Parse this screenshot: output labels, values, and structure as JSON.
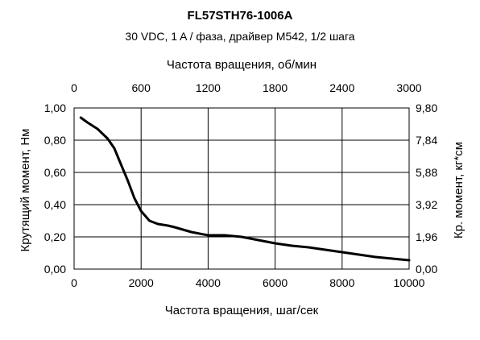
{
  "chart_data": {
    "type": "line",
    "title": "FL57STH76-1006A",
    "subtitle": "30 VDC, 1 A / фаза, драйвер M542, 1/2 шага",
    "xlabel": "Частота вращения, шаг/сек",
    "x2label": "Частота вращения, об/мин",
    "ylabel": "Крутящий момент, Нм",
    "y2label": "Кр. момент, кг*см",
    "xlim": [
      0,
      10000
    ],
    "ylim": [
      0,
      1
    ],
    "x2lim": [
      0,
      3000
    ],
    "y2lim": [
      0,
      9.8
    ],
    "xticks": [
      "0",
      "2000",
      "4000",
      "6000",
      "8000",
      "10000"
    ],
    "x2ticks": [
      "0",
      "600",
      "1200",
      "1800",
      "2400",
      "3000"
    ],
    "yticks": [
      "0,00",
      "0,20",
      "0,40",
      "0,60",
      "0,80",
      "1,00"
    ],
    "y2ticks": [
      "0,00",
      "1,96",
      "3,92",
      "5,88",
      "7,84",
      "9,80"
    ],
    "grid": true,
    "series": [
      {
        "x": [
          200,
          400,
          700,
          1000,
          1200,
          1400,
          1600,
          1800,
          2000,
          2250,
          2500,
          2800,
          3000,
          3500,
          4000,
          4500,
          5000,
          5500,
          6000,
          6500,
          7000,
          7500,
          8000,
          8500,
          9000,
          9500,
          10000
        ],
        "values": [
          0.94,
          0.91,
          0.87,
          0.81,
          0.75,
          0.65,
          0.55,
          0.44,
          0.36,
          0.3,
          0.28,
          0.27,
          0.26,
          0.23,
          0.21,
          0.21,
          0.2,
          0.18,
          0.16,
          0.145,
          0.135,
          0.12,
          0.105,
          0.09,
          0.075,
          0.065,
          0.055
        ]
      }
    ]
  }
}
